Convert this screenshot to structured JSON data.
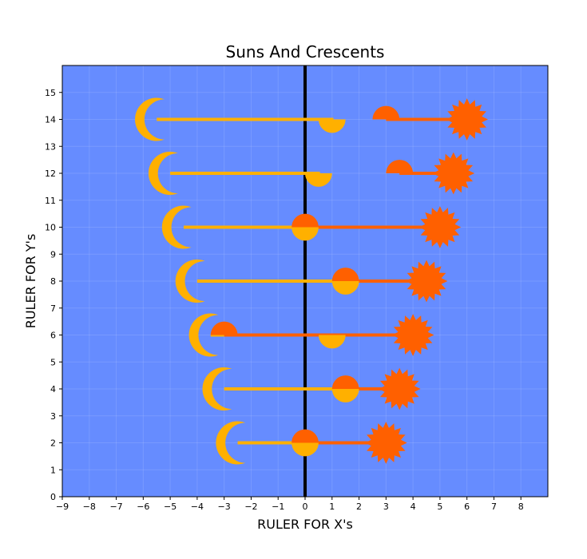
{
  "chart_data": {
    "type": "scatter",
    "title": "Suns And Crescents",
    "xlabel": "RULER FOR X's",
    "ylabel": "RULER FOR Y's",
    "xlim": [
      -9,
      9
    ],
    "ylim": [
      0,
      16
    ],
    "xticks": [
      -9,
      -8,
      -7,
      -6,
      -5,
      -4,
      -3,
      -2,
      -1,
      0,
      1,
      2,
      3,
      4,
      5,
      6,
      7,
      8
    ],
    "yticks": [
      0,
      1,
      2,
      3,
      4,
      5,
      6,
      7,
      8,
      9,
      10,
      11,
      12,
      13,
      14,
      15
    ],
    "vline_x": 0,
    "grid": true,
    "colors": {
      "background": "#668cff",
      "crescent": "#ffb000",
      "sun": "#ff6000",
      "vline": "#000000"
    },
    "rows": [
      {
        "y": 2,
        "crescent_x": -2.5,
        "sun_x": 3.0,
        "marker_a_x": 0.0,
        "marker_b_x": 0.0
      },
      {
        "y": 4,
        "crescent_x": -3.0,
        "sun_x": 3.5,
        "marker_a_x": 1.5,
        "marker_b_x": 1.5
      },
      {
        "y": 6,
        "crescent_x": -3.5,
        "sun_x": 4.0,
        "marker_a_x": 1.0,
        "marker_b_x": -3.0
      },
      {
        "y": 8,
        "crescent_x": -4.0,
        "sun_x": 4.5,
        "marker_a_x": 1.5,
        "marker_b_x": 1.5
      },
      {
        "y": 10,
        "crescent_x": -4.5,
        "sun_x": 5.0,
        "marker_a_x": 0.0,
        "marker_b_x": 0.0
      },
      {
        "y": 12,
        "crescent_x": -5.0,
        "sun_x": 5.5,
        "marker_a_x": 0.5,
        "marker_b_x": 3.5
      },
      {
        "y": 14,
        "crescent_x": -5.5,
        "sun_x": 6.0,
        "marker_a_x": 1.0,
        "marker_b_x": 3.0
      }
    ]
  }
}
